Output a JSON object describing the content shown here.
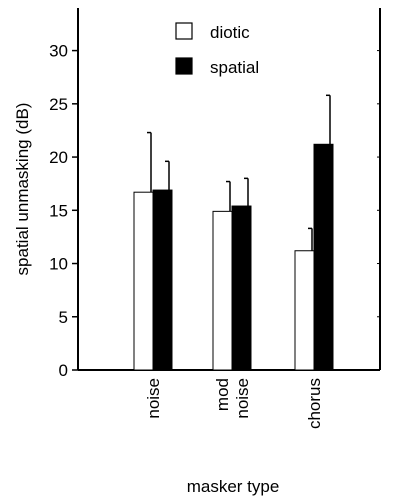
{
  "chart_data": {
    "type": "bar",
    "categories": [
      {
        "id": "noise",
        "lines": [
          "noise"
        ]
      },
      {
        "id": "mod-noise",
        "lines": [
          "mod",
          "noise"
        ]
      },
      {
        "id": "chorus",
        "lines": [
          "chorus"
        ]
      }
    ],
    "series": [
      {
        "name": "diotic",
        "color": "#ffffff",
        "values": [
          16.7,
          14.9,
          11.2
        ],
        "errors": [
          5.6,
          2.8,
          2.1
        ]
      },
      {
        "name": "spatial",
        "color": "#000000",
        "values": [
          16.9,
          15.4,
          21.2
        ],
        "errors": [
          2.7,
          2.6,
          4.6
        ]
      }
    ],
    "title": "",
    "xlabel": "masker type",
    "ylabel": "spatial unmasking (dB)",
    "ylim": [
      0,
      34
    ],
    "yticks": [
      0,
      5,
      10,
      15,
      20,
      25,
      30
    ],
    "grid": false,
    "legend": "top-center",
    "error_bars": "upper"
  }
}
